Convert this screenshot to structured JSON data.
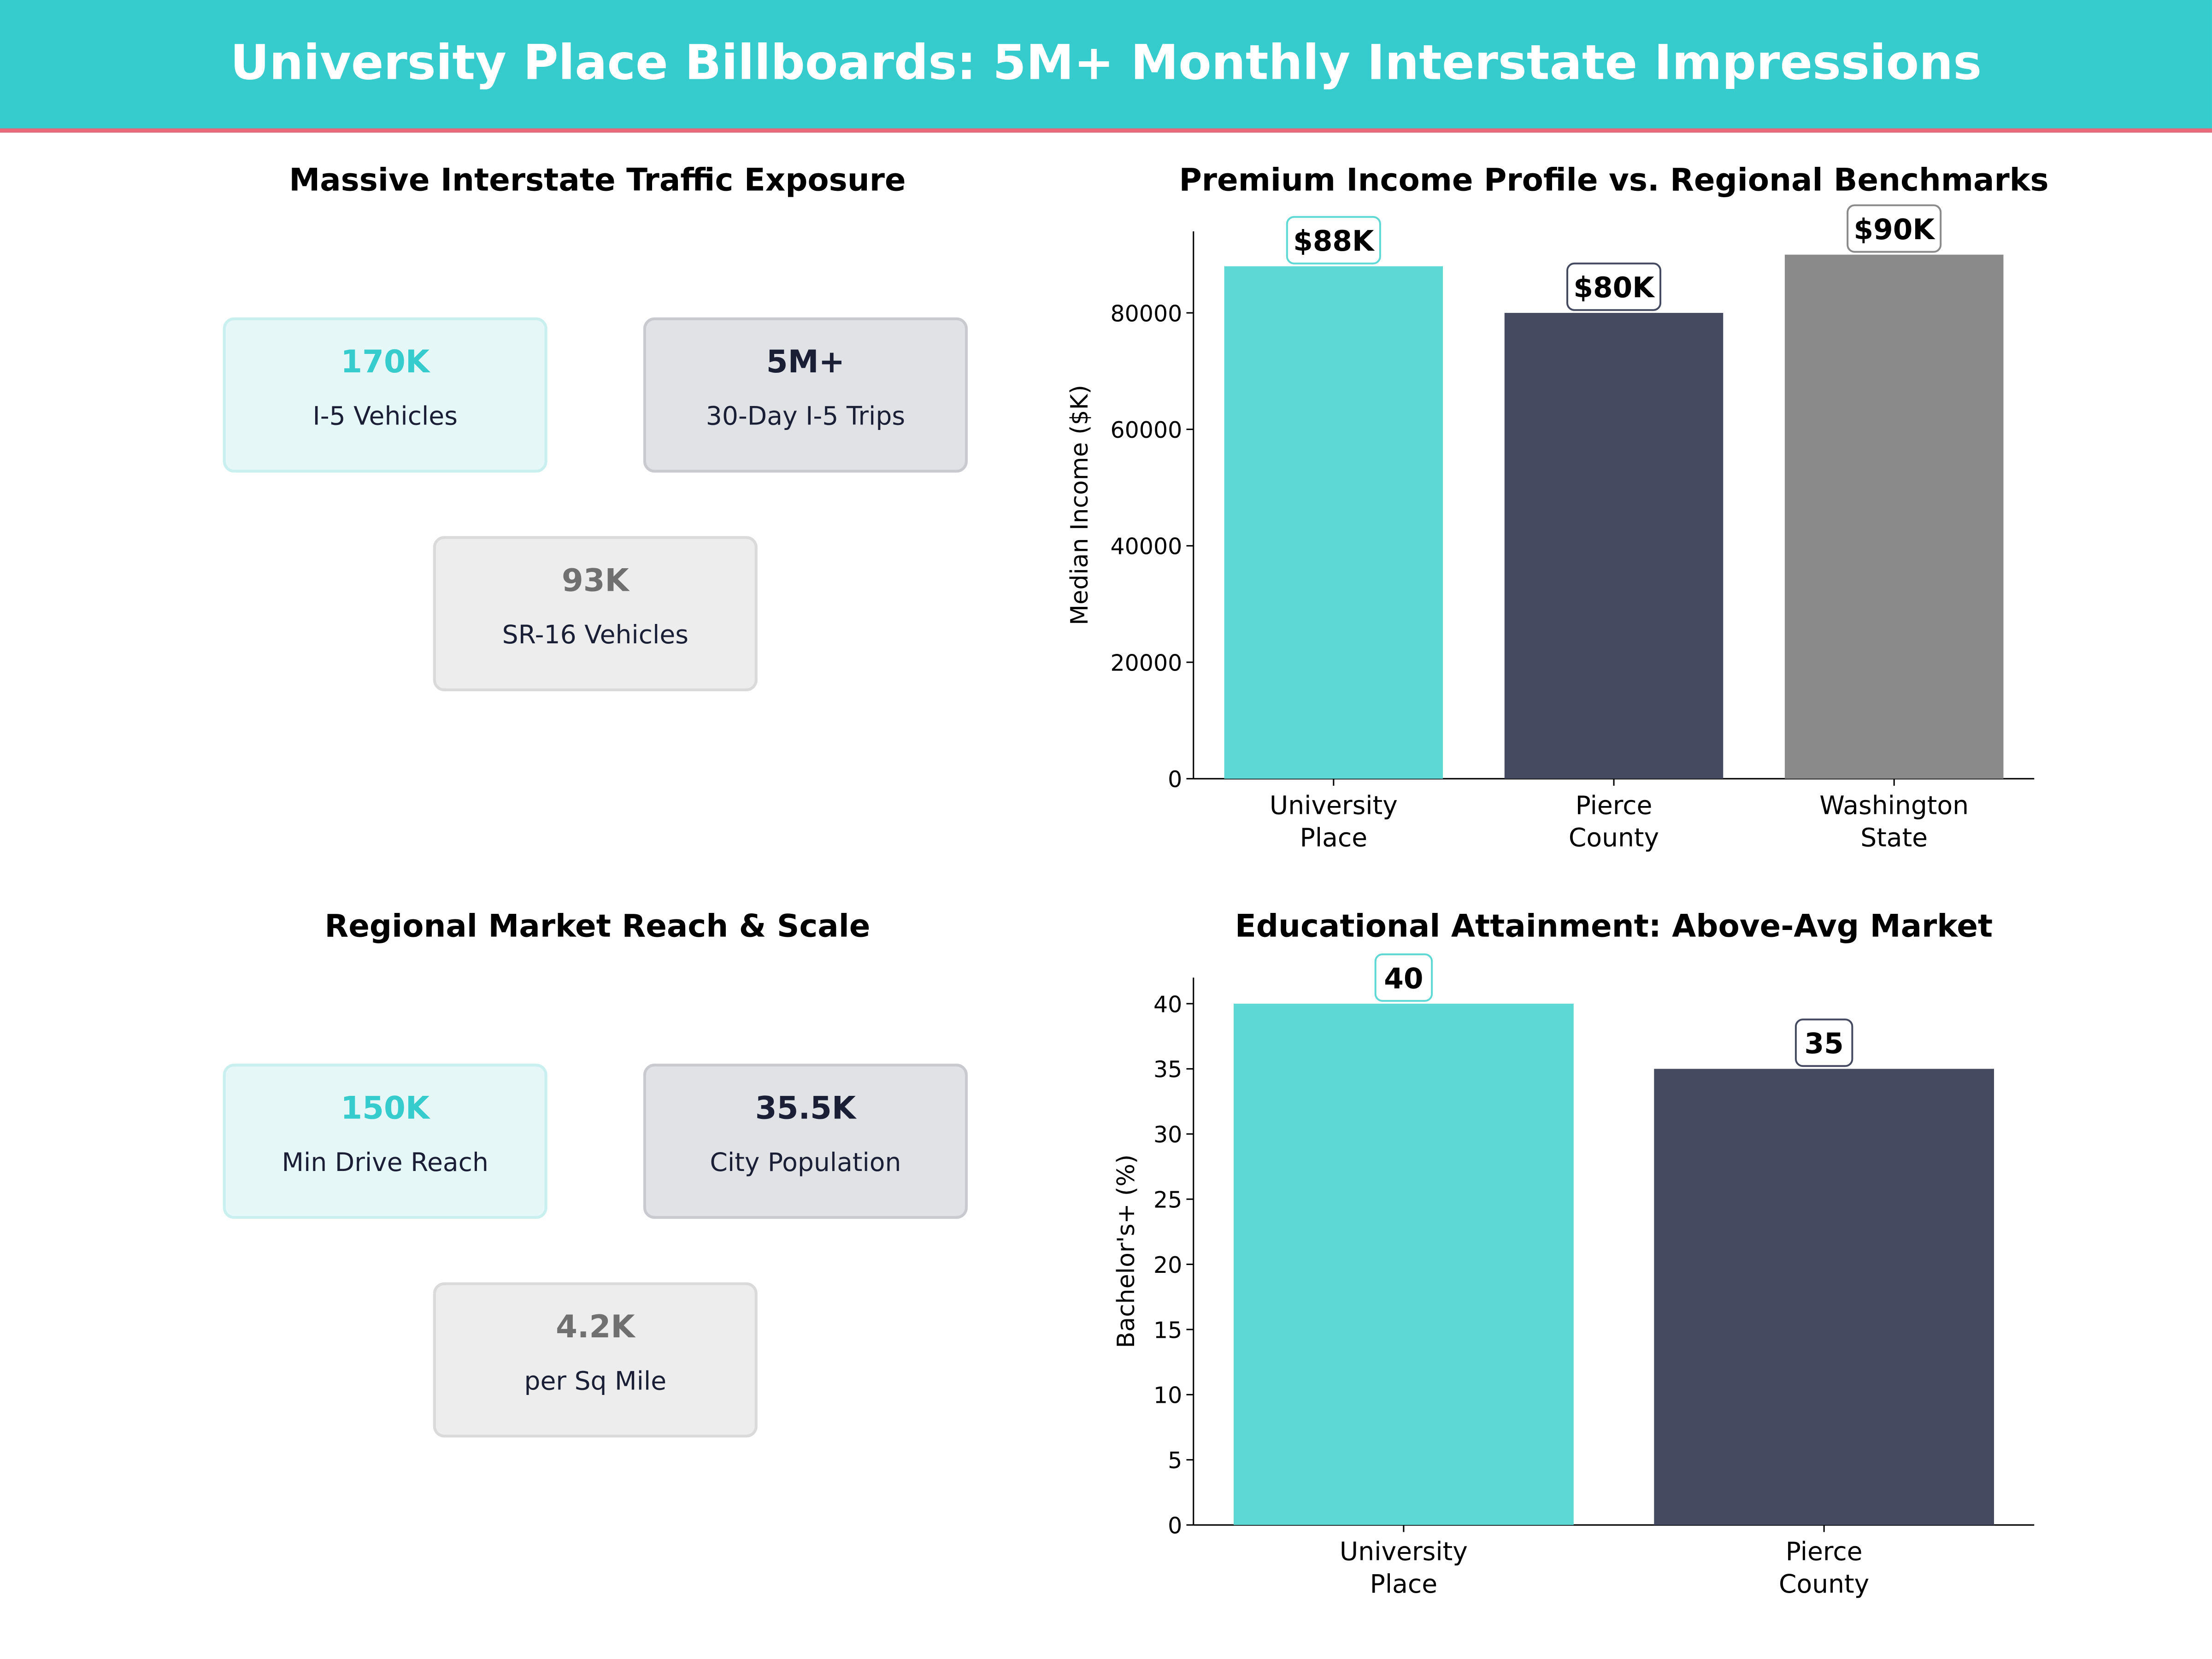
{
  "header": {
    "title": "University Place Billboards: 5M+ Monthly Interstate Impressions"
  },
  "panels": {
    "traffic": {
      "title": "Massive Interstate Traffic Exposure",
      "cards": [
        {
          "value": "170K",
          "label": "I-5 Vehicles",
          "style": "teal"
        },
        {
          "value": "5M+",
          "label": "30-Day I-5 Trips",
          "style": "dark"
        },
        {
          "value": "93K",
          "label": "SR-16 Vehicles",
          "style": "grey"
        }
      ]
    },
    "market": {
      "title": "Regional Market Reach & Scale",
      "cards": [
        {
          "value": "150K",
          "label": "Min Drive Reach",
          "style": "teal"
        },
        {
          "value": "35.5K",
          "label": "City Population",
          "style": "dark"
        },
        {
          "value": "4.2K",
          "label": "per Sq Mile",
          "style": "grey"
        }
      ]
    }
  },
  "colors": {
    "teal": "#5DD8D5",
    "dark": "#454A60",
    "grey": "#8A8A8A",
    "header": "#36CBCC",
    "accent_line": "#E8697A"
  },
  "chart_data": [
    {
      "type": "bar",
      "title": "Premium Income Profile vs. Regional Benchmarks",
      "xlabel": "",
      "ylabel": "Median Income ($K)",
      "categories": [
        "University\nPlace",
        "Pierce\nCounty",
        "Washington\nState"
      ],
      "values": [
        88000,
        80000,
        90000
      ],
      "data_labels": [
        "$88K",
        "$80K",
        "$90K"
      ],
      "colors": [
        "#5DD8D5",
        "#454A60",
        "#8A8A8A"
      ],
      "yticks": [
        0,
        20000,
        40000,
        60000,
        80000
      ],
      "ylim": [
        0,
        94000
      ],
      "grid": false
    },
    {
      "type": "bar",
      "title": "Educational Attainment: Above-Avg Market",
      "xlabel": "",
      "ylabel": "Bachelor's+ (%)",
      "categories": [
        "University\nPlace",
        "Pierce\nCounty"
      ],
      "values": [
        40,
        35
      ],
      "data_labels": [
        "40",
        "35"
      ],
      "colors": [
        "#5DD8D5",
        "#454A60"
      ],
      "yticks": [
        0,
        5,
        10,
        15,
        20,
        25,
        30,
        35,
        40
      ],
      "ylim": [
        0,
        42
      ],
      "grid": false
    }
  ]
}
